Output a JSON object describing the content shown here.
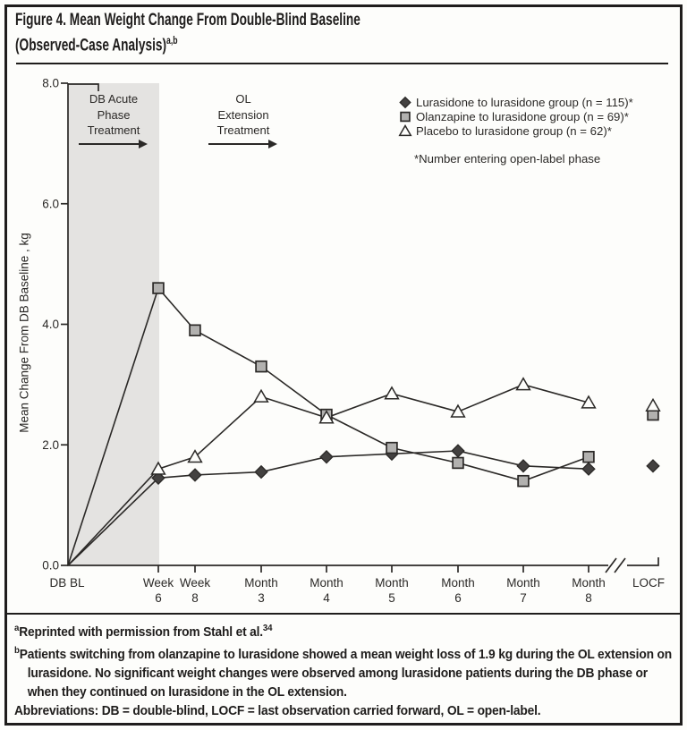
{
  "figure": {
    "title_line1": "Figure 4. Mean Weight Change From Double-Blind Baseline",
    "title_line2": "(Observed-Case Analysis)",
    "title_superscript": "a,b"
  },
  "chart_data": {
    "type": "line",
    "title": "Figure 4. Mean Weight Change From Double-Blind Baseline (Observed-Case Analysis)",
    "ylabel": "Mean Change From DB Baseline , kg",
    "ylim": [
      0.0,
      8.0
    ],
    "yticks": [
      "0.0",
      "2.0",
      "4.0",
      "6.0",
      "8.0"
    ],
    "x_ticklabels": [
      [
        "DB BL"
      ],
      [
        "Week",
        "6"
      ],
      [
        "Week",
        "8"
      ],
      [
        "Month",
        "3"
      ],
      [
        "Month",
        "4"
      ],
      [
        "Month",
        "5"
      ],
      [
        "Month",
        "6"
      ],
      [
        "Month",
        "7"
      ],
      [
        "Month",
        "8"
      ]
    ],
    "locf_label": "LOCF",
    "axis_break": true,
    "grid": false,
    "legend_position": "upper right",
    "series": [
      {
        "name": "Lurasidone to lurasidone group (n = 115)*",
        "marker": "diamond",
        "values": [
          0,
          1.45,
          1.5,
          1.55,
          1.8,
          1.85,
          1.9,
          1.65,
          1.6
        ],
        "locf": 1.65
      },
      {
        "name": "Olanzapine to lurasidone group (n = 69)*",
        "marker": "square",
        "values": [
          0,
          4.6,
          3.9,
          3.3,
          2.5,
          1.95,
          1.7,
          1.4,
          1.8
        ],
        "locf": 2.5
      },
      {
        "name": "Placebo to lurasidone group (n = 62)*",
        "marker": "triangle",
        "values": [
          0,
          1.6,
          1.8,
          2.8,
          2.45,
          2.85,
          2.55,
          3.0,
          2.7
        ],
        "locf": 2.65
      }
    ],
    "legend_footnote": "*Number entering open-label phase",
    "annotations": [
      {
        "lines": [
          "DB Acute",
          "Phase",
          "Treatment"
        ],
        "arrow": true
      },
      {
        "lines": [
          "OL",
          "Extension",
          "Treatment"
        ],
        "arrow": true
      }
    ]
  },
  "footnotes": {
    "a_sup": "a",
    "a_text": "Reprinted with permission from Stahl et al.",
    "a_ref_sup": "34",
    "b_sup": "b",
    "b_text": "Patients switching from olanzapine to lurasidone showed a mean weight loss of 1.9 kg during the OL extension on lurasidone. No significant weight changes were observed among lurasidone patients during the DB phase or when they continued on lurasidone in the OL extension.",
    "abbr": "Abbreviations: DB = double-blind, LOCF = last observation carried forward, OL = open-label."
  },
  "colors": {
    "ink": "#2b2927",
    "border": "#1f1d1c",
    "shade": "#e4e3e1",
    "square_fill": "#b2b1af",
    "diamond_fill": "#434140",
    "triangle_fill": "#fdfdfb",
    "background": "#fdfdfb"
  }
}
